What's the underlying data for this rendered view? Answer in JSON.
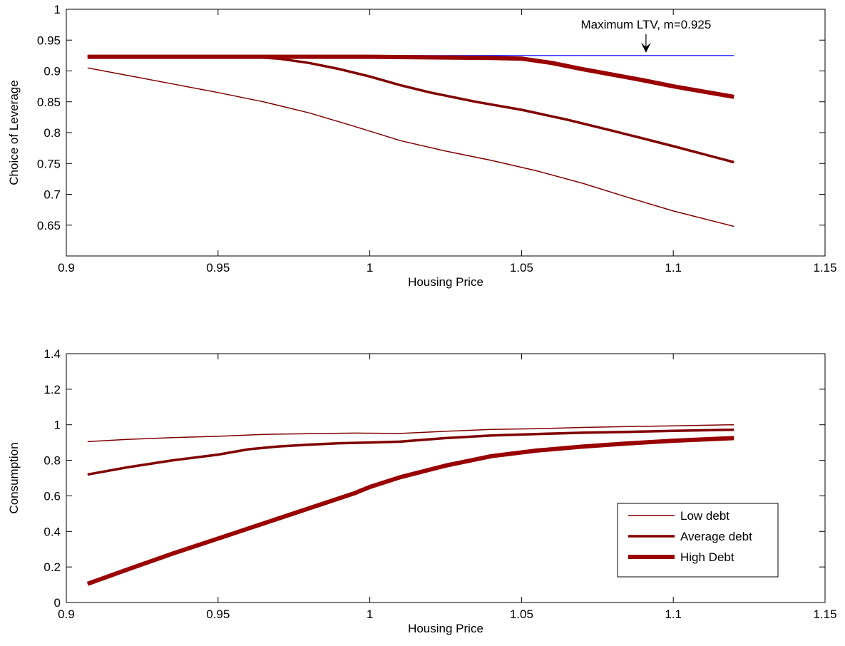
{
  "chart_data": [
    {
      "type": "line",
      "xlabel": "Housing Price",
      "ylabel": "Choice of Leverage",
      "xlim": [
        0.9,
        1.15
      ],
      "ylim": [
        0.6,
        1.0
      ],
      "xticks": [
        0.9,
        0.95,
        1.0,
        1.05,
        1.1,
        1.15
      ],
      "xtick_labels": [
        "0.9",
        "0.95",
        "1",
        "1.05",
        "1.1",
        "1.15"
      ],
      "yticks": [
        0.65,
        0.7,
        0.75,
        0.8,
        0.85,
        0.9,
        0.95,
        1.0
      ],
      "ytick_labels": [
        "0.65",
        "0.7",
        "0.75",
        "0.8",
        "0.85",
        "0.9",
        "0.95",
        "1"
      ],
      "grid": false,
      "annotation": {
        "text": "Maximum LTV, m=0.925",
        "x": 1.091,
        "y": 0.925
      },
      "reference_line": {
        "y": 0.925,
        "x": [
          0.907,
          1.12
        ],
        "color": "#0000ff"
      },
      "series": [
        {
          "name": "Low debt",
          "color": "#800000",
          "width": 1.5,
          "x": [
            0.907,
            0.92,
            0.935,
            0.95,
            0.965,
            0.98,
            0.995,
            1.01,
            1.025,
            1.04,
            1.055,
            1.07,
            1.085,
            1.1,
            1.12
          ],
          "y": [
            0.905,
            0.893,
            0.879,
            0.865,
            0.85,
            0.832,
            0.81,
            0.787,
            0.77,
            0.755,
            0.738,
            0.718,
            0.695,
            0.673,
            0.648
          ]
        },
        {
          "name": "Average debt",
          "color": "#800000",
          "width": 3.5,
          "x": [
            0.907,
            0.92,
            0.94,
            0.96,
            0.97,
            0.98,
            0.99,
            1.0,
            1.01,
            1.02,
            1.035,
            1.05,
            1.065,
            1.08,
            1.1,
            1.12
          ],
          "y": [
            0.923,
            0.923,
            0.923,
            0.923,
            0.92,
            0.913,
            0.903,
            0.891,
            0.877,
            0.865,
            0.85,
            0.837,
            0.821,
            0.803,
            0.778,
            0.752
          ]
        },
        {
          "name": "High Debt",
          "color": "#990000",
          "width": 6,
          "x": [
            0.907,
            0.95,
            1.0,
            1.04,
            1.05,
            1.06,
            1.07,
            1.08,
            1.09,
            1.1,
            1.12
          ],
          "y": [
            0.923,
            0.923,
            0.923,
            0.921,
            0.92,
            0.913,
            0.903,
            0.894,
            0.885,
            0.875,
            0.858
          ]
        }
      ]
    },
    {
      "type": "line",
      "xlabel": "Housing Price",
      "ylabel": "Consumption",
      "xlim": [
        0.9,
        1.15
      ],
      "ylim": [
        0,
        1.4
      ],
      "xticks": [
        0.9,
        0.95,
        1.0,
        1.05,
        1.1,
        1.15
      ],
      "xtick_labels": [
        "0.9",
        "0.95",
        "1",
        "1.05",
        "1.1",
        "1.15"
      ],
      "yticks": [
        0,
        0.2,
        0.4,
        0.6,
        0.8,
        1.0,
        1.2,
        1.4
      ],
      "ytick_labels": [
        "0",
        "0.2",
        "0.4",
        "0.6",
        "0.8",
        "1",
        "1.2",
        "1.4"
      ],
      "grid": false,
      "legend_position": "bottom-right",
      "series": [
        {
          "name": "Low debt",
          "color": "#800000",
          "width": 1.5,
          "x": [
            0.907,
            0.92,
            0.935,
            0.95,
            0.965,
            0.98,
            0.995,
            1.01,
            1.025,
            1.04,
            1.055,
            1.07,
            1.085,
            1.1,
            1.12
          ],
          "y": [
            0.905,
            0.918,
            0.928,
            0.935,
            0.946,
            0.95,
            0.953,
            0.951,
            0.963,
            0.974,
            0.978,
            0.985,
            0.99,
            0.994,
            1.0
          ]
        },
        {
          "name": "Average debt",
          "color": "#800000",
          "width": 3.5,
          "x": [
            0.907,
            0.92,
            0.935,
            0.95,
            0.96,
            0.97,
            0.98,
            0.99,
            1.0,
            1.01,
            1.025,
            1.04,
            1.055,
            1.07,
            1.085,
            1.1,
            1.12
          ],
          "y": [
            0.72,
            0.76,
            0.8,
            0.832,
            0.862,
            0.878,
            0.888,
            0.896,
            0.9,
            0.905,
            0.925,
            0.94,
            0.948,
            0.955,
            0.96,
            0.966,
            0.972
          ]
        },
        {
          "name": "High Debt",
          "color": "#990000",
          "width": 6,
          "x": [
            0.907,
            0.92,
            0.935,
            0.95,
            0.965,
            0.98,
            0.995,
            1.0,
            1.01,
            1.025,
            1.04,
            1.055,
            1.07,
            1.085,
            1.1,
            1.12
          ],
          "y": [
            0.105,
            0.185,
            0.275,
            0.36,
            0.445,
            0.53,
            0.615,
            0.65,
            0.705,
            0.77,
            0.823,
            0.855,
            0.877,
            0.895,
            0.91,
            0.925
          ]
        }
      ]
    }
  ]
}
